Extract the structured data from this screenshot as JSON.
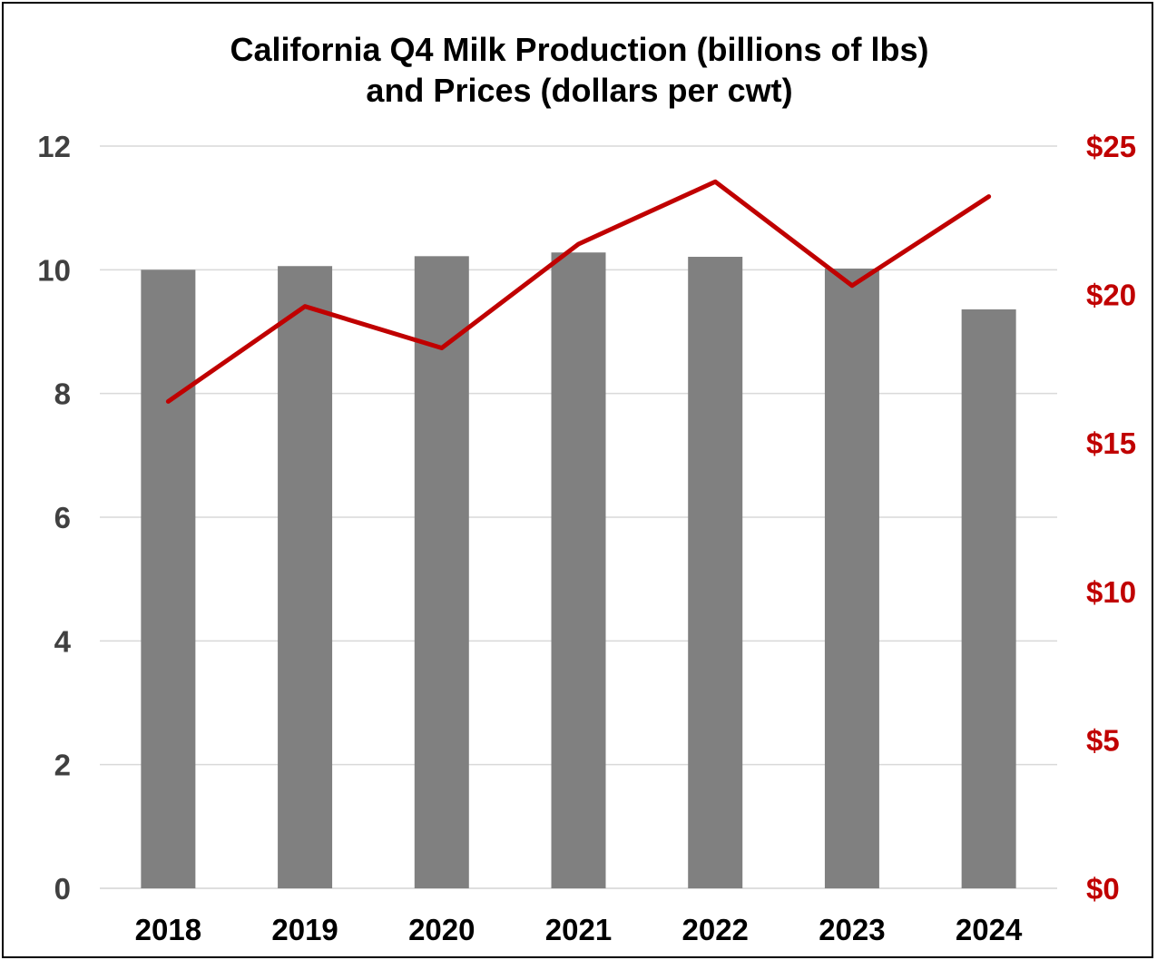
{
  "chart_data": {
    "type": "bar",
    "title": [
      "California Q4 Milk Production (billions of lbs)",
      "and Prices (dollars per cwt)"
    ],
    "categories": [
      "2018",
      "2019",
      "2020",
      "2021",
      "2022",
      "2023",
      "2024"
    ],
    "series": [
      {
        "type": "bar",
        "axis": "left",
        "color": "#808080",
        "values": [
          10.0,
          10.06,
          10.22,
          10.28,
          10.21,
          10.02,
          9.36
        ]
      },
      {
        "type": "line",
        "axis": "right",
        "color": "#C00000",
        "values": [
          16.4,
          19.6,
          18.2,
          21.7,
          23.8,
          20.3,
          23.3
        ]
      }
    ],
    "y_left": {
      "ylim": [
        0,
        12
      ],
      "ticks": [
        "0",
        "2",
        "4",
        "6",
        "8",
        "10",
        "12"
      ],
      "color": "#404040"
    },
    "y_right": {
      "ylim": [
        0,
        25
      ],
      "ticks": [
        "$0",
        "$5",
        "$10",
        "$15",
        "$20",
        "$25"
      ],
      "color": "#C00000"
    },
    "grid": true,
    "legend": "none"
  }
}
